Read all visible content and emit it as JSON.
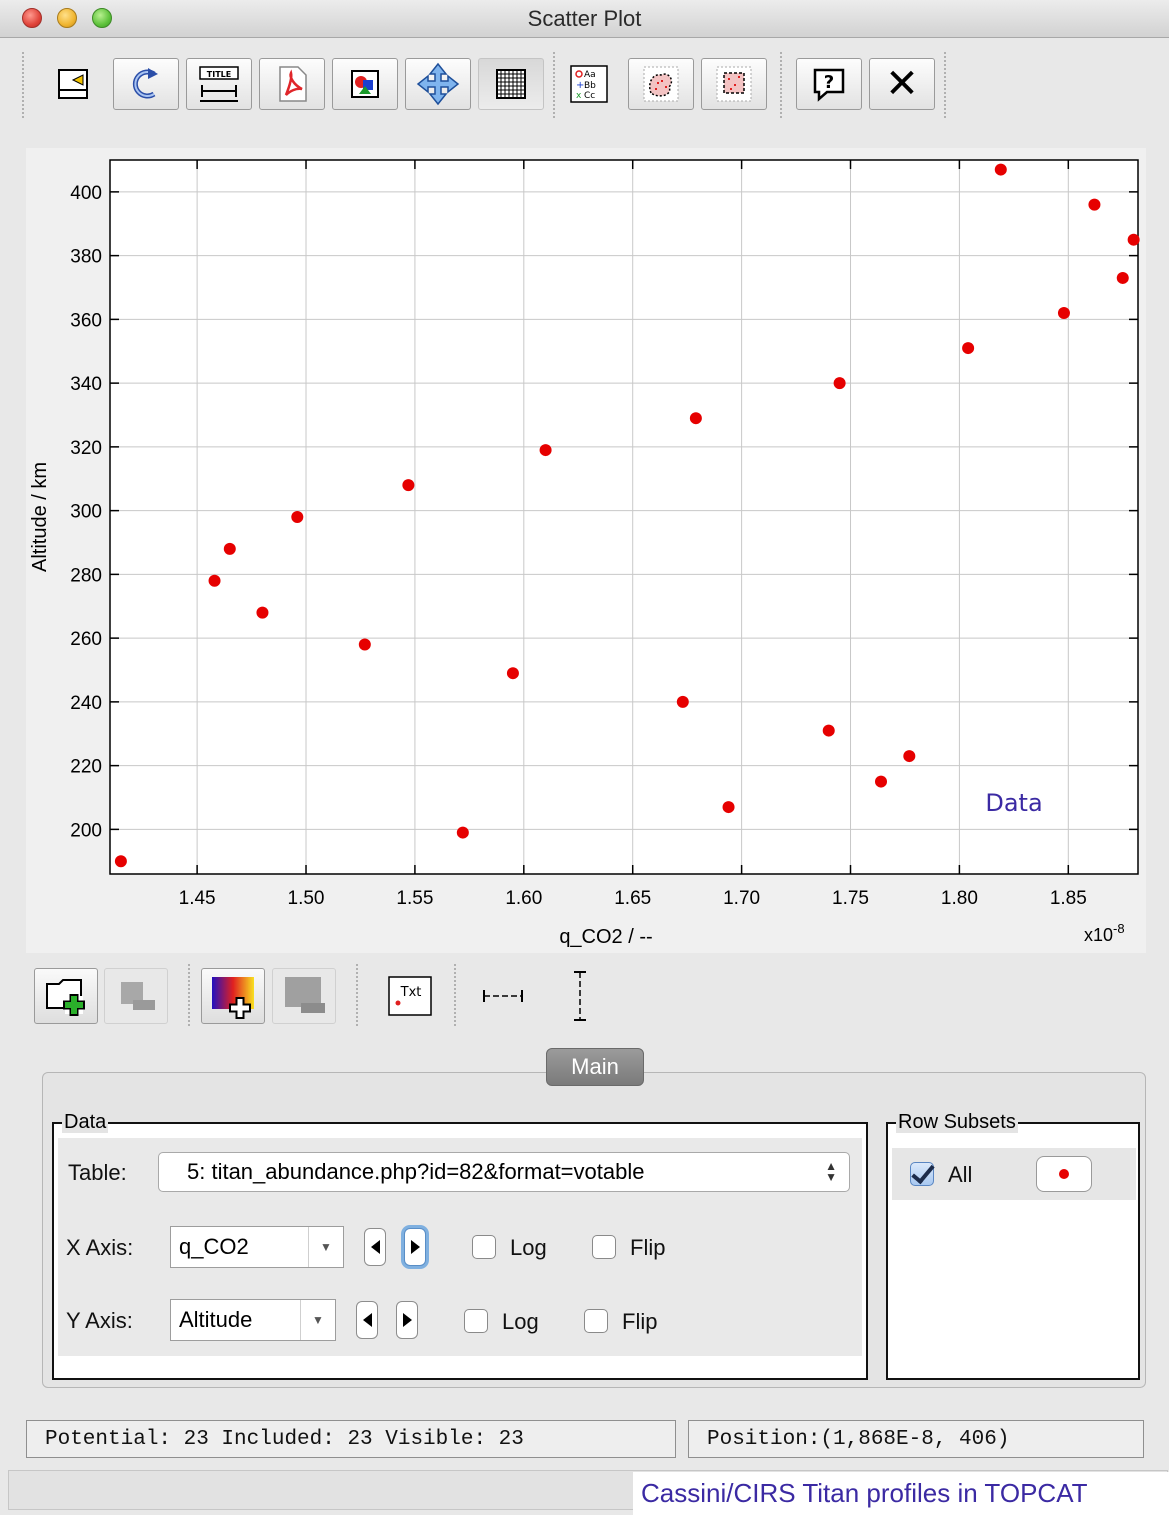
{
  "window": {
    "title": "Scatter Plot"
  },
  "toolbar": {
    "buttons": [
      {
        "icon": "export-icon",
        "label": ""
      },
      {
        "icon": "replot-icon",
        "label": ""
      },
      {
        "icon": "axis-title-icon",
        "label": "TITLE"
      },
      {
        "icon": "pdf-icon",
        "label": ""
      },
      {
        "icon": "image-export-icon",
        "label": ""
      },
      {
        "icon": "navigate-icon",
        "label": ""
      },
      {
        "icon": "grid-icon",
        "label": ""
      },
      {
        "icon": "legend-icon",
        "label": ""
      },
      {
        "icon": "blob-subset-icon",
        "label": ""
      },
      {
        "icon": "region-subset-icon",
        "label": ""
      },
      {
        "icon": "help-icon",
        "label": "?"
      },
      {
        "icon": "close-icon",
        "label": "✕"
      }
    ]
  },
  "plot": {
    "legend_text": "Data",
    "x_multiplier": "x10",
    "x_multiplier_exp": "-8"
  },
  "chart_data": {
    "type": "scatter",
    "title": "",
    "xlabel": "q_CO2 / --",
    "ylabel": "Altitude / km",
    "xlim": [
      1.41,
      1.882
    ],
    "ylim": [
      186,
      410
    ],
    "x_ticks": [
      1.45,
      1.5,
      1.55,
      1.6,
      1.65,
      1.7,
      1.75,
      1.8,
      1.85
    ],
    "x_tick_labels": [
      "1.45",
      "1.50",
      "1.55",
      "1.60",
      "1.65",
      "1.70",
      "1.75",
      "1.80",
      "1.85"
    ],
    "y_ticks": [
      200,
      220,
      240,
      260,
      280,
      300,
      320,
      340,
      360,
      380,
      400
    ],
    "y_tick_labels": [
      "200",
      "220",
      "240",
      "260",
      "280",
      "300",
      "320",
      "340",
      "360",
      "380",
      "400"
    ],
    "grid": true,
    "legend_position": "bottom-right",
    "series": [
      {
        "name": "Data",
        "color": "#e60000",
        "points": [
          {
            "x": 1.415,
            "y": 190
          },
          {
            "x": 1.458,
            "y": 278
          },
          {
            "x": 1.465,
            "y": 288
          },
          {
            "x": 1.48,
            "y": 268
          },
          {
            "x": 1.496,
            "y": 298
          },
          {
            "x": 1.527,
            "y": 258
          },
          {
            "x": 1.547,
            "y": 308
          },
          {
            "x": 1.572,
            "y": 199
          },
          {
            "x": 1.595,
            "y": 249
          },
          {
            "x": 1.61,
            "y": 319
          },
          {
            "x": 1.673,
            "y": 240
          },
          {
            "x": 1.679,
            "y": 329
          },
          {
            "x": 1.694,
            "y": 207
          },
          {
            "x": 1.74,
            "y": 231
          },
          {
            "x": 1.745,
            "y": 340
          },
          {
            "x": 1.764,
            "y": 215
          },
          {
            "x": 1.777,
            "y": 223
          },
          {
            "x": 1.804,
            "y": 351
          },
          {
            "x": 1.819,
            "y": 407
          },
          {
            "x": 1.848,
            "y": 362
          },
          {
            "x": 1.862,
            "y": 396
          },
          {
            "x": 1.875,
            "y": 373
          },
          {
            "x": 1.88,
            "y": 385
          }
        ]
      }
    ]
  },
  "layers": {
    "text_icon_label": "Txt"
  },
  "tabs": {
    "main": "Main"
  },
  "data_group": {
    "legend": "Data",
    "table_label": "Table:",
    "table_value": "5: titan_abundance.php?id=82&format=votable",
    "x_axis_label": "X Axis:",
    "x_axis_value": "q_CO2",
    "y_axis_label": "Y Axis:",
    "y_axis_value": "Altitude",
    "log_label": "Log",
    "flip_label": "Flip"
  },
  "subsets_group": {
    "legend": "Row Subsets",
    "items": [
      {
        "label": "All",
        "checked": true,
        "color": "#e60000"
      }
    ]
  },
  "status": {
    "counts": "Potential: 23 Included: 23 Visible: 23",
    "position": "Position:(1,868E-8, 406)"
  },
  "caption": "Cassini/CIRS Titan profiles in TOPCAT"
}
